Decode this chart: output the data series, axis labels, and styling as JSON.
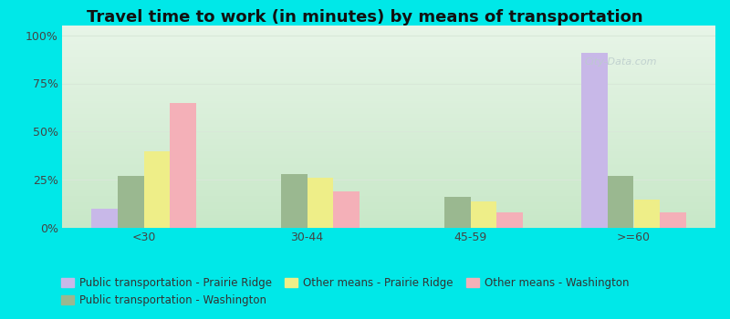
{
  "title": "Travel time to work (in minutes) by means of transportation",
  "categories": [
    "<30",
    "30-44",
    "45-59",
    ">=60"
  ],
  "series": [
    {
      "label": "Public transportation - Prairie Ridge",
      "color": "#c8b8e8",
      "values": [
        10,
        0,
        0,
        91
      ]
    },
    {
      "label": "Public transportation - Washington",
      "color": "#9ab890",
      "values": [
        27,
        28,
        16,
        27
      ]
    },
    {
      "label": "Other means - Prairie Ridge",
      "color": "#eeee88",
      "values": [
        40,
        26,
        14,
        15
      ]
    },
    {
      "label": "Other means - Washington",
      "color": "#f4b0b8",
      "values": [
        65,
        19,
        8,
        8
      ]
    }
  ],
  "yticks": [
    0,
    25,
    50,
    75,
    100
  ],
  "ytick_labels": [
    "0%",
    "25%",
    "50%",
    "75%",
    "100%"
  ],
  "ylim": [
    0,
    105
  ],
  "background_outer": "#00e8e8",
  "bg_gradient_bottom": "#c8e8c8",
  "bg_gradient_top": "#e8f5e8",
  "grid_color": "#d8e8d8",
  "bar_width": 0.16,
  "title_fontsize": 13,
  "axis_fontsize": 9,
  "legend_fontsize": 8.5,
  "watermark": "City-Data.com",
  "watermark_color": "#bbcccc",
  "watermark_fontsize": 8
}
